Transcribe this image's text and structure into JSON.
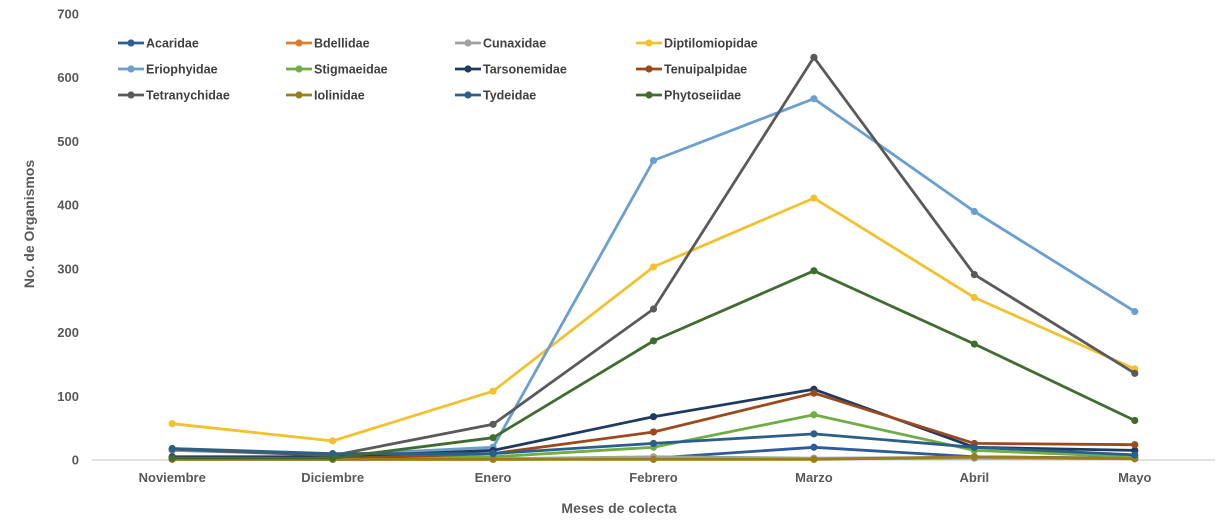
{
  "chart_data": {
    "type": "line",
    "title": "",
    "xlabel": "Meses de colecta",
    "ylabel": "No. de Organismos",
    "ylim": [
      0,
      700
    ],
    "yticks": [
      0,
      100,
      200,
      300,
      400,
      500,
      600,
      700
    ],
    "grid": false,
    "legend_position": "top-left",
    "categories": [
      "Noviembre",
      "Diciembre",
      "Enero",
      "Febrero",
      "Marzo",
      "Abril",
      "Mayo"
    ],
    "series": [
      {
        "name": "Acaridae",
        "color": "#2e5c9a",
        "values": [
          2,
          1,
          2,
          3,
          20,
          5,
          3
        ]
      },
      {
        "name": "Bdellidae",
        "color": "#e07b30",
        "values": [
          1,
          1,
          1,
          2,
          2,
          3,
          2
        ]
      },
      {
        "name": "Cunaxidae",
        "color": "#a0a0a0",
        "values": [
          2,
          1,
          2,
          5,
          3,
          4,
          2
        ]
      },
      {
        "name": "Diptilomiopidae",
        "color": "#f2c12e",
        "values": [
          57,
          30,
          108,
          303,
          411,
          255,
          143
        ]
      },
      {
        "name": "Eriophyidae",
        "color": "#6a9fcf",
        "values": [
          15,
          8,
          20,
          470,
          567,
          390,
          233
        ]
      },
      {
        "name": "Stigmaeidae",
        "color": "#70ad47",
        "values": [
          3,
          2,
          5,
          20,
          71,
          15,
          5
        ]
      },
      {
        "name": "Tarsonemidae",
        "color": "#1f3a60",
        "values": [
          5,
          5,
          15,
          68,
          111,
          20,
          15
        ]
      },
      {
        "name": "Tenuipalpidae",
        "color": "#9b4a1e",
        "values": [
          3,
          2,
          10,
          44,
          105,
          26,
          24
        ]
      },
      {
        "name": "Tetranychidae",
        "color": "#5a5a5a",
        "values": [
          17,
          7,
          56,
          237,
          632,
          291,
          136
        ]
      },
      {
        "name": "Iolinidae",
        "color": "#9c7d1d",
        "values": [
          1,
          1,
          1,
          1,
          1,
          5,
          2
        ]
      },
      {
        "name": "Tydeidae",
        "color": "#2a5f8a",
        "values": [
          18,
          10,
          10,
          26,
          41,
          20,
          8
        ]
      },
      {
        "name": "Phytoseiidae",
        "color": "#3f6d2f",
        "values": [
          3,
          3,
          35,
          187,
          297,
          182,
          62
        ]
      }
    ]
  }
}
